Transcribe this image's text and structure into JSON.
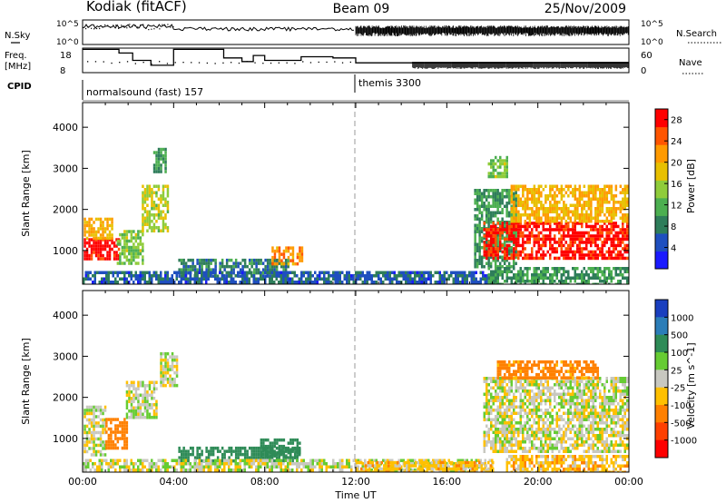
{
  "header": {
    "station": "Kodiak (fitACF)",
    "beam": "Beam 09",
    "date": "25/Nov/2009"
  },
  "summary_panels": {
    "nsky_label": "N.Sky",
    "nsky_ticks": [
      "10^5",
      "10^0"
    ],
    "nsearch_label": "N.Search",
    "nsearch_ticks": [
      "10^5",
      "10^0"
    ],
    "freq_label_line1": "Freq.",
    "freq_label_line2": "[MHz]",
    "freq_ticks": [
      "18",
      "8"
    ],
    "nave_label": "Nave",
    "nave_ticks": [
      "60",
      "0"
    ],
    "cpid_label": "CPID",
    "cpid_segments": [
      {
        "label": "normalsound (fast) 157",
        "start_hour": 0,
        "end_hour": 12
      },
      {
        "label": "themis 3300",
        "start_hour": 12,
        "end_hour": 24
      }
    ],
    "freq_steps": [
      {
        "start_hour": 0.0,
        "mhz": 17.5
      },
      {
        "start_hour": 1.6,
        "mhz": 16.0
      },
      {
        "start_hour": 2.2,
        "mhz": 13.0
      },
      {
        "start_hour": 3.0,
        "mhz": 11.0
      },
      {
        "start_hour": 4.0,
        "mhz": 17.5
      },
      {
        "start_hour": 6.2,
        "mhz": 14.0
      },
      {
        "start_hour": 7.0,
        "mhz": 12.5
      },
      {
        "start_hour": 7.5,
        "mhz": 15.0
      },
      {
        "start_hour": 8.0,
        "mhz": 13.0
      },
      {
        "start_hour": 9.6,
        "mhz": 14.5
      },
      {
        "start_hour": 11.0,
        "mhz": 14.0
      },
      {
        "start_hour": 12.0,
        "mhz": 12.0
      }
    ]
  },
  "colors": {
    "power_scale": [
      "#1a1aff",
      "#1f4fbf",
      "#2e7d5a",
      "#4caf50",
      "#8fcc3a",
      "#e8c000",
      "#ff9a00",
      "#ff5500",
      "#ff0000"
    ],
    "velocity_scale": [
      "#1a3fbf",
      "#2b7db8",
      "#2e8b57",
      "#66cc33",
      "#c8c8c0",
      "#ffc000",
      "#ff8000",
      "#ff4000",
      "#ff0000"
    ]
  },
  "chart_data": [
    {
      "type": "heatmap",
      "title": "Power",
      "xlabel": "Time UT",
      "ylabel": "Slant Range [km]",
      "x_ticks": [
        "00:00",
        "04:00",
        "08:00",
        "12:00",
        "16:00",
        "20:00",
        "00:00"
      ],
      "xlim_hours": [
        0,
        24
      ],
      "y_ticks": [
        1000,
        2000,
        3000,
        4000
      ],
      "ylim": [
        180,
        4600
      ],
      "colorbar_label": "Power [dB]",
      "colorbar_ticks": [
        4,
        8,
        12,
        16,
        20,
        24,
        28
      ],
      "colorbar_range": [
        0,
        30
      ],
      "regions": [
        {
          "t0": 0.05,
          "t1": 1.6,
          "r0": 800,
          "r1": 1300,
          "value": 29
        },
        {
          "t0": 0.05,
          "t1": 1.3,
          "r0": 1300,
          "r1": 1800,
          "value": 20
        },
        {
          "t0": 1.5,
          "t1": 2.6,
          "r0": 700,
          "r1": 1500,
          "value": 14
        },
        {
          "t0": 2.6,
          "t1": 3.7,
          "r0": 1500,
          "r1": 2600,
          "value": 16
        },
        {
          "t0": 3.1,
          "t1": 3.6,
          "r0": 2900,
          "r1": 3500,
          "value": 10
        },
        {
          "t0": 4.2,
          "t1": 9.0,
          "r0": 400,
          "r1": 800,
          "value": 8
        },
        {
          "t0": 8.3,
          "t1": 9.6,
          "r0": 700,
          "r1": 1100,
          "value": 22
        },
        {
          "t0": 0.0,
          "t1": 17.8,
          "r0": 200,
          "r1": 500,
          "value": 6
        },
        {
          "t0": 17.2,
          "t1": 19.0,
          "r0": 600,
          "r1": 2500,
          "value": 10
        },
        {
          "t0": 17.6,
          "t1": 23.9,
          "r0": 800,
          "r1": 1700,
          "value": 28
        },
        {
          "t0": 18.8,
          "t1": 23.9,
          "r0": 1700,
          "r1": 2600,
          "value": 20
        },
        {
          "t0": 17.8,
          "t1": 18.6,
          "r0": 2800,
          "r1": 3300,
          "value": 14
        },
        {
          "t0": 17.8,
          "t1": 23.9,
          "r0": 200,
          "r1": 600,
          "value": 10
        }
      ]
    },
    {
      "type": "heatmap",
      "title": "Velocity",
      "xlabel": "Time UT",
      "ylabel": "Slant Range [km]",
      "x_ticks": [
        "00:00",
        "04:00",
        "08:00",
        "12:00",
        "16:00",
        "20:00",
        "00:00"
      ],
      "xlim_hours": [
        0,
        24
      ],
      "y_ticks": [
        1000,
        2000,
        3000,
        4000
      ],
      "ylim": [
        180,
        4600
      ],
      "colorbar_label": "Velocity [m s^-1]",
      "colorbar_ticks": [
        1000,
        500,
        100,
        25,
        -25,
        -100,
        -500,
        -1000
      ],
      "regions": [
        {
          "t0": 0.05,
          "t1": 1.0,
          "r0": 600,
          "r1": 1800,
          "value": 0
        },
        {
          "t0": 1.0,
          "t1": 1.9,
          "r0": 800,
          "r1": 1500,
          "value": -300
        },
        {
          "t0": 1.9,
          "t1": 3.2,
          "r0": 1500,
          "r1": 2400,
          "value": 0
        },
        {
          "t0": 3.4,
          "t1": 4.1,
          "r0": 2300,
          "r1": 3100,
          "value": 0
        },
        {
          "t0": 4.2,
          "t1": 9.5,
          "r0": 450,
          "r1": 800,
          "value": 200
        },
        {
          "t0": 7.8,
          "t1": 9.5,
          "r0": 600,
          "r1": 1000,
          "value": 300
        },
        {
          "t0": 0.0,
          "t1": 18.0,
          "r0": 200,
          "r1": 500,
          "value": 0
        },
        {
          "t0": 12.0,
          "t1": 18.0,
          "r0": 200,
          "r1": 450,
          "value": -60
        },
        {
          "t0": 17.6,
          "t1": 23.9,
          "r0": 700,
          "r1": 2500,
          "value": 0
        },
        {
          "t0": 18.2,
          "t1": 22.6,
          "r0": 2500,
          "r1": 2900,
          "value": -150
        },
        {
          "t0": 18.6,
          "t1": 23.9,
          "r0": 200,
          "r1": 600,
          "value": -60
        }
      ]
    }
  ]
}
